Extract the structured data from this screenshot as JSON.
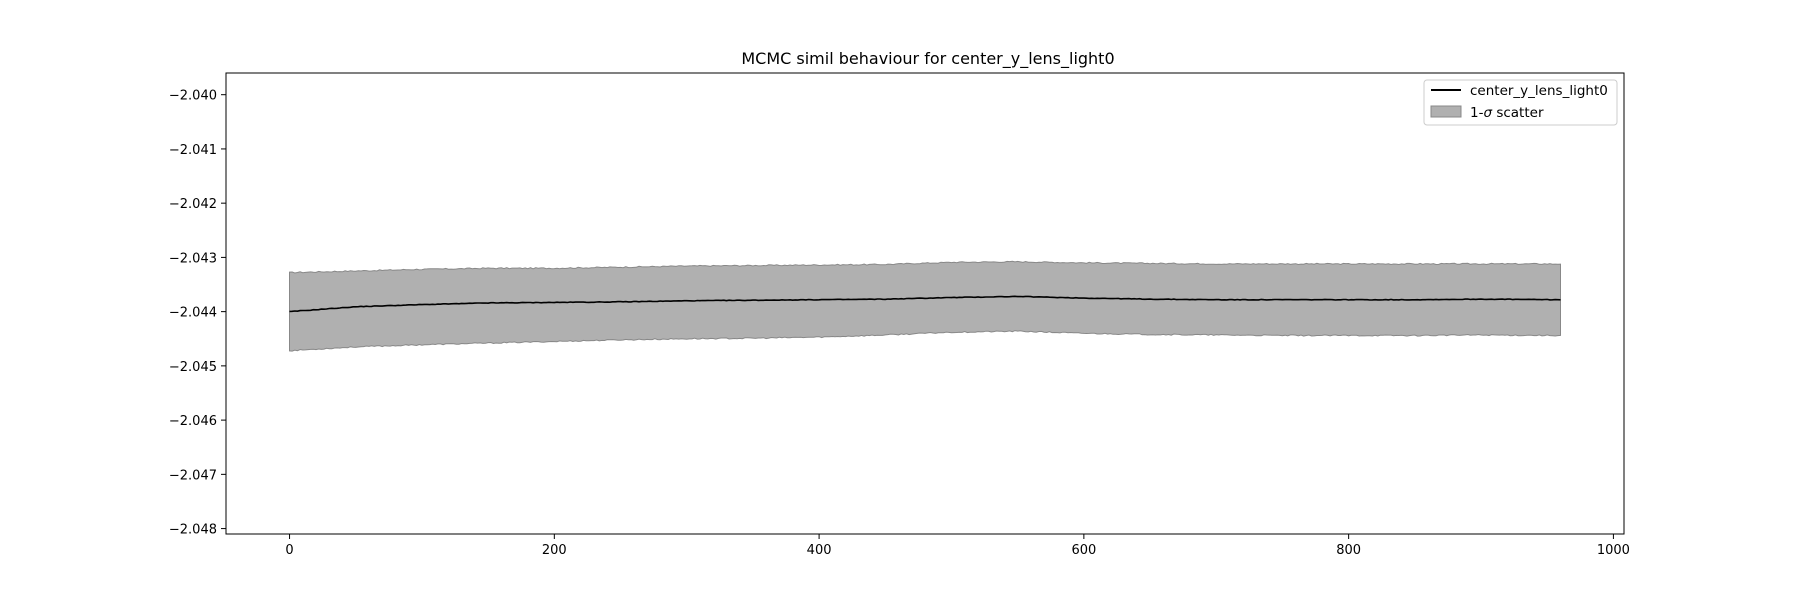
{
  "chart_data": {
    "type": "line",
    "title": "MCMC simil behaviour for center_y_lens_light0",
    "xlabel": "",
    "ylabel": "",
    "xlim": [
      -48,
      1008
    ],
    "ylim": [
      -2.0481,
      -2.0396
    ],
    "xticks": [
      0,
      200,
      400,
      600,
      800,
      1000
    ],
    "yticks": [
      -2.04,
      -2.041,
      -2.042,
      -2.043,
      -2.044,
      -2.045,
      -2.046,
      -2.047,
      -2.048
    ],
    "xtick_labels": [
      "0",
      "200",
      "400",
      "600",
      "800",
      "1000"
    ],
    "ytick_labels": [
      "−2.040",
      "−2.041",
      "−2.042",
      "−2.043",
      "−2.044",
      "−2.045",
      "−2.046",
      "−2.047",
      "−2.048"
    ],
    "grid": false,
    "legend_position": "top-right",
    "series": [
      {
        "name": "center_y_lens_light0",
        "kind": "line",
        "color": "#000000",
        "x": [
          0,
          50,
          100,
          150,
          200,
          250,
          300,
          350,
          400,
          450,
          500,
          550,
          600,
          650,
          700,
          750,
          800,
          850,
          900,
          960
        ],
        "values": [
          -2.044,
          -2.04391,
          -2.04387,
          -2.04384,
          -2.04383,
          -2.04382,
          -2.0438,
          -2.04379,
          -2.04378,
          -2.04377,
          -2.04374,
          -2.04372,
          -2.04375,
          -2.04377,
          -2.04378,
          -2.04378,
          -2.04378,
          -2.04378,
          -2.04377,
          -2.04378
        ]
      },
      {
        "name": "1-σ scatter",
        "label_prefix": "1-",
        "label_symbol": "σ",
        "label_suffix": " scatter",
        "kind": "band",
        "color": "#b0b0b0",
        "edge_color": "#888888",
        "x": [
          0,
          50,
          100,
          150,
          200,
          250,
          300,
          350,
          400,
          450,
          500,
          550,
          600,
          650,
          700,
          750,
          800,
          850,
          900,
          960
        ],
        "upper": [
          -2.04328,
          -2.04325,
          -2.04322,
          -2.0432,
          -2.0432,
          -2.04318,
          -2.04316,
          -2.04315,
          -2.04314,
          -2.04313,
          -2.04309,
          -2.04308,
          -2.0431,
          -2.04311,
          -2.04312,
          -2.04312,
          -2.04312,
          -2.04312,
          -2.04312,
          -2.04312
        ],
        "lower": [
          -2.04472,
          -2.04465,
          -2.04461,
          -2.04458,
          -2.04455,
          -2.04452,
          -2.0445,
          -2.04449,
          -2.04447,
          -2.04443,
          -2.04438,
          -2.04436,
          -2.0444,
          -2.04442,
          -2.04443,
          -2.04444,
          -2.04444,
          -2.04444,
          -2.04443,
          -2.04444
        ]
      }
    ]
  }
}
